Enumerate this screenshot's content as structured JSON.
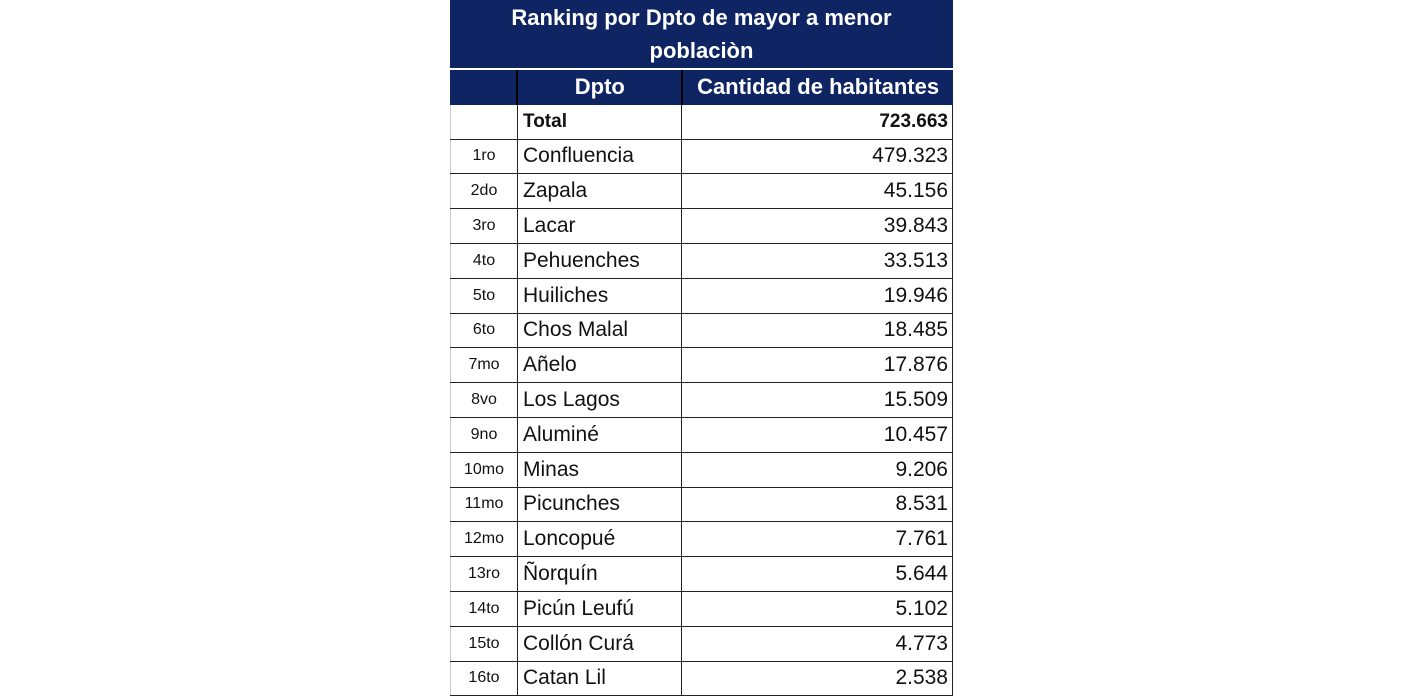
{
  "title": "Ranking   por Dpto de mayor a menor población",
  "title_line1": "Ranking   por Dpto de mayor a menor",
  "title_line2": "poblaciòn",
  "headers": {
    "rank": "",
    "dpto": "Dpto",
    "cantidad": "Cantidad de habitantes"
  },
  "total": {
    "label": "Total",
    "value": "723.663"
  },
  "rows": [
    {
      "rank": "1ro",
      "dpto": "Confluencia",
      "value": "479.323"
    },
    {
      "rank": "2do",
      "dpto": "Zapala",
      "value": "45.156"
    },
    {
      "rank": "3ro",
      "dpto": "Lacar",
      "value": "39.843"
    },
    {
      "rank": "4to",
      "dpto": "Pehuenches",
      "value": "33.513"
    },
    {
      "rank": "5to",
      "dpto": "Huiliches",
      "value": "19.946"
    },
    {
      "rank": "6to",
      "dpto": "Chos Malal",
      "value": "18.485"
    },
    {
      "rank": "7mo",
      "dpto": "Añelo",
      "value": "17.876"
    },
    {
      "rank": "8vo",
      "dpto": "Los Lagos",
      "value": "15.509"
    },
    {
      "rank": "9no",
      "dpto": "Aluminé",
      "value": "10.457"
    },
    {
      "rank": "10mo",
      "dpto": "Minas",
      "value": "9.206"
    },
    {
      "rank": "11mo",
      "dpto": "Picunches",
      "value": "8.531"
    },
    {
      "rank": "12mo",
      "dpto": "Loncopué",
      "value": "7.761"
    },
    {
      "rank": "13ro",
      "dpto": "Ñorquín",
      "value": "5.644"
    },
    {
      "rank": "14to",
      "dpto": "Picún Leufú",
      "value": "5.102"
    },
    {
      "rank": "15to",
      "dpto": "Collón Curá",
      "value": "4.773"
    },
    {
      "rank": "16to",
      "dpto": "Catan Lil",
      "value": "2.538"
    }
  ]
}
